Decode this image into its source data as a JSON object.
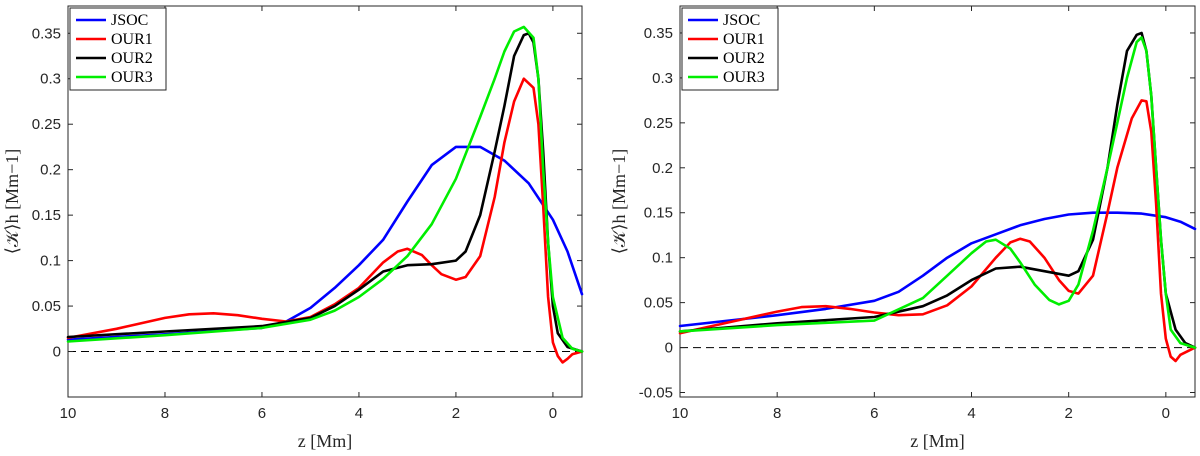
{
  "chart_data": [
    {
      "type": "line",
      "title": "",
      "xlabel": "z [Mm]",
      "ylabel": "⟨𝒦⟩h [Mm−1]",
      "xlim": [
        10,
        -0.6
      ],
      "ylim": [
        -0.05,
        0.38
      ],
      "xticks": [
        10,
        8,
        6,
        4,
        2,
        0
      ],
      "yticks": [
        0,
        0.05,
        0.1,
        0.15,
        0.2,
        0.25,
        0.3,
        0.35
      ],
      "ytick_labels": [
        "0",
        "0.05",
        "0.1",
        "0.15",
        "0.2",
        "0.25",
        "0.3",
        "0.35"
      ],
      "legend_position": "top-left",
      "reference_line": {
        "y": 0,
        "style": "dashed"
      },
      "series": [
        {
          "name": "JSOC",
          "color": "#0000ff",
          "x": [
            10,
            8,
            6,
            5.5,
            5,
            4.5,
            4,
            3.5,
            3,
            2.5,
            2,
            1.5,
            1,
            0.5,
            0,
            -0.3,
            -0.6
          ],
          "y": [
            0.013,
            0.019,
            0.026,
            0.033,
            0.048,
            0.07,
            0.095,
            0.123,
            0.165,
            0.205,
            0.225,
            0.225,
            0.21,
            0.185,
            0.145,
            0.11,
            0.063
          ]
        },
        {
          "name": "OUR1",
          "color": "#ff0000",
          "x": [
            10,
            9,
            8,
            7.5,
            7,
            6.5,
            6,
            5.5,
            5,
            4.5,
            4,
            3.5,
            3.2,
            3,
            2.7,
            2.5,
            2.3,
            2,
            1.8,
            1.5,
            1.2,
            1,
            0.8,
            0.6,
            0.4,
            0.3,
            0.2,
            0.1,
            0,
            -0.1,
            -0.2,
            -0.3,
            -0.4,
            -0.6
          ],
          "y": [
            0.015,
            0.025,
            0.037,
            0.041,
            0.042,
            0.04,
            0.036,
            0.033,
            0.038,
            0.052,
            0.07,
            0.098,
            0.11,
            0.113,
            0.106,
            0.095,
            0.085,
            0.079,
            0.082,
            0.105,
            0.17,
            0.23,
            0.275,
            0.3,
            0.29,
            0.25,
            0.16,
            0.06,
            0.01,
            -0.005,
            -0.012,
            -0.008,
            -0.003,
            0
          ]
        },
        {
          "name": "OUR2",
          "color": "#000000",
          "x": [
            10,
            8,
            6,
            5,
            4.5,
            4,
            3.5,
            3,
            2.5,
            2,
            1.8,
            1.5,
            1.2,
            1,
            0.8,
            0.6,
            0.5,
            0.4,
            0.3,
            0.2,
            0.1,
            0,
            -0.1,
            -0.3,
            -0.6
          ],
          "y": [
            0.016,
            0.022,
            0.028,
            0.037,
            0.05,
            0.068,
            0.088,
            0.095,
            0.096,
            0.1,
            0.11,
            0.15,
            0.22,
            0.27,
            0.325,
            0.348,
            0.35,
            0.34,
            0.3,
            0.22,
            0.12,
            0.05,
            0.02,
            0.005,
            0
          ]
        },
        {
          "name": "OUR3",
          "color": "#00ee00",
          "x": [
            10,
            8,
            6,
            5,
            4.5,
            4,
            3.5,
            3,
            2.5,
            2,
            1.5,
            1.2,
            1,
            0.8,
            0.6,
            0.4,
            0.3,
            0.2,
            0.1,
            0,
            -0.2,
            -0.4,
            -0.6
          ],
          "y": [
            0.011,
            0.018,
            0.026,
            0.035,
            0.045,
            0.06,
            0.08,
            0.105,
            0.14,
            0.19,
            0.258,
            0.3,
            0.33,
            0.352,
            0.357,
            0.345,
            0.3,
            0.2,
            0.12,
            0.06,
            0.015,
            0.003,
            0
          ]
        }
      ]
    },
    {
      "type": "line",
      "title": "",
      "xlabel": "z [Mm]",
      "ylabel": "⟨𝒦⟩h [Mm−1]",
      "xlim": [
        10,
        -0.6
      ],
      "ylim": [
        -0.055,
        0.38
      ],
      "xticks": [
        10,
        8,
        6,
        4,
        2,
        0
      ],
      "yticks": [
        -0.05,
        0,
        0.05,
        0.1,
        0.15,
        0.2,
        0.25,
        0.3,
        0.35
      ],
      "ytick_labels": [
        "-0.05",
        "0",
        "0.05",
        "0.1",
        "0.15",
        "0.2",
        "0.25",
        "0.3",
        "0.35"
      ],
      "legend_position": "top-left",
      "reference_line": {
        "y": 0,
        "style": "dashed"
      },
      "series": [
        {
          "name": "JSOC",
          "color": "#0000ff",
          "x": [
            10,
            8,
            7,
            6,
            5.5,
            5,
            4.5,
            4,
            3.5,
            3,
            2.5,
            2,
            1.5,
            1,
            0.5,
            0,
            -0.3,
            -0.6
          ],
          "y": [
            0.024,
            0.036,
            0.043,
            0.052,
            0.062,
            0.08,
            0.1,
            0.116,
            0.126,
            0.136,
            0.143,
            0.148,
            0.15,
            0.15,
            0.149,
            0.145,
            0.14,
            0.132
          ]
        },
        {
          "name": "OUR1",
          "color": "#ff0000",
          "x": [
            10,
            9,
            8,
            7.5,
            7,
            6.5,
            6,
            5.5,
            5,
            4.5,
            4,
            3.5,
            3.2,
            3,
            2.8,
            2.5,
            2.2,
            2,
            1.8,
            1.5,
            1.2,
            1,
            0.7,
            0.5,
            0.4,
            0.3,
            0.2,
            0.1,
            0,
            -0.1,
            -0.2,
            -0.3,
            -0.6
          ],
          "y": [
            0.016,
            0.028,
            0.04,
            0.045,
            0.046,
            0.043,
            0.039,
            0.036,
            0.037,
            0.047,
            0.068,
            0.1,
            0.117,
            0.121,
            0.118,
            0.1,
            0.075,
            0.063,
            0.06,
            0.08,
            0.15,
            0.2,
            0.255,
            0.275,
            0.274,
            0.24,
            0.16,
            0.06,
            0.01,
            -0.01,
            -0.015,
            -0.008,
            0
          ]
        },
        {
          "name": "OUR2",
          "color": "#000000",
          "x": [
            10,
            8,
            6,
            5,
            4.5,
            4,
            3.5,
            3,
            2.5,
            2,
            1.8,
            1.5,
            1.2,
            1,
            0.8,
            0.6,
            0.5,
            0.4,
            0.3,
            0.2,
            0.1,
            0,
            -0.2,
            -0.4,
            -0.6
          ],
          "y": [
            0.018,
            0.027,
            0.034,
            0.046,
            0.058,
            0.075,
            0.088,
            0.09,
            0.085,
            0.08,
            0.085,
            0.12,
            0.2,
            0.27,
            0.33,
            0.348,
            0.35,
            0.33,
            0.28,
            0.2,
            0.12,
            0.06,
            0.02,
            0.005,
            0
          ]
        },
        {
          "name": "OUR3",
          "color": "#00ee00",
          "x": [
            10,
            8,
            6,
            5,
            4.5,
            4,
            3.7,
            3.5,
            3.2,
            3,
            2.7,
            2.4,
            2.2,
            2,
            1.8,
            1.5,
            1.2,
            1,
            0.8,
            0.6,
            0.5,
            0.4,
            0.3,
            0.2,
            0.1,
            0,
            -0.1,
            -0.3,
            -0.6
          ],
          "y": [
            0.018,
            0.025,
            0.03,
            0.055,
            0.08,
            0.105,
            0.118,
            0.12,
            0.11,
            0.095,
            0.07,
            0.053,
            0.048,
            0.052,
            0.07,
            0.13,
            0.2,
            0.25,
            0.3,
            0.34,
            0.345,
            0.33,
            0.28,
            0.2,
            0.12,
            0.06,
            0.02,
            0.005,
            0
          ]
        }
      ]
    }
  ]
}
